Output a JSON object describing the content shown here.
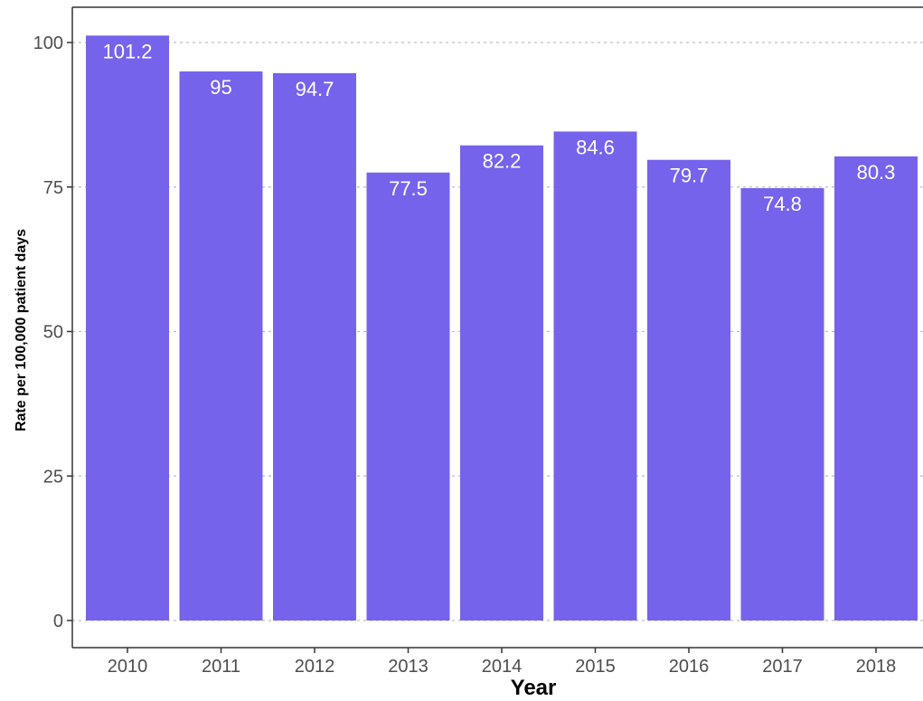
{
  "chart_data": {
    "type": "bar",
    "title": "",
    "xlabel": "Year",
    "ylabel": "Rate per 100,000 patient days",
    "categories": [
      "2010",
      "2011",
      "2012",
      "2013",
      "2014",
      "2015",
      "2016",
      "2017",
      "2018"
    ],
    "values": [
      101.2,
      95,
      94.7,
      77.5,
      82.2,
      84.6,
      79.7,
      74.8,
      80.3
    ],
    "data_labels": [
      "101.2",
      "95",
      "94.7",
      "77.5",
      "82.2",
      "84.6",
      "79.7",
      "74.8",
      "80.3"
    ],
    "ylim": [
      0,
      105
    ],
    "yticks": [
      0,
      25,
      50,
      75,
      100
    ],
    "ytick_labels": [
      "0",
      "25",
      "50",
      "75",
      "100"
    ],
    "grid": "horizontal dashed",
    "legend": "none",
    "colors": {
      "bar": "#7563EC",
      "bar_label": "#ffffff",
      "grid": "#bfbfbf",
      "axis": "#333333",
      "background": "#ffffff"
    }
  }
}
